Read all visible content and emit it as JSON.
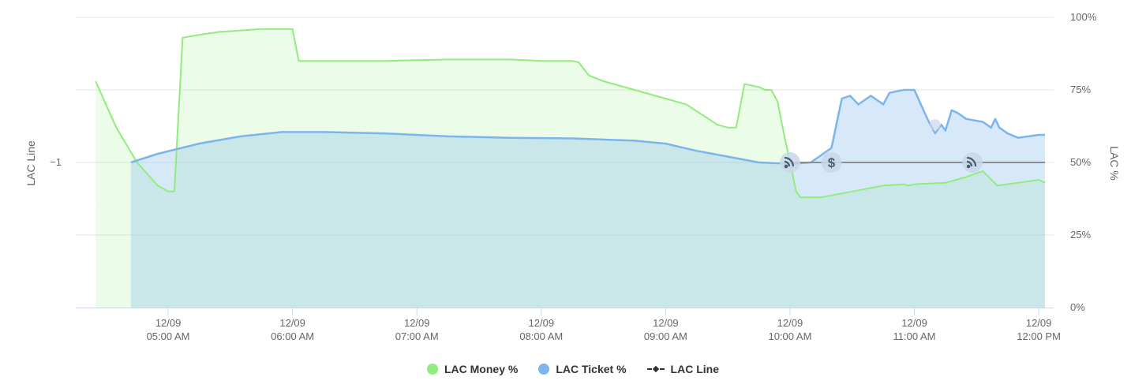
{
  "colors": {
    "money": "#90ed7d",
    "ticket": "#7cb5ec",
    "line": "#434348",
    "grid": "#e6e6e6",
    "marker_bg": "#c9d7e8",
    "marker_fg": "#4a5a70"
  },
  "chart_data": {
    "type": "area",
    "title": "",
    "x_tick_labels": [
      {
        "x": "04:45",
        "date": "12/09",
        "time": "05:00 AM"
      },
      {
        "x": "05:45",
        "date": "12/09",
        "time": "06:00 AM"
      },
      {
        "x": "06:45",
        "date": "12/09",
        "time": "07:00 AM"
      },
      {
        "x": "07:45",
        "date": "12/09",
        "time": "08:00 AM"
      },
      {
        "x": "08:45",
        "date": "12/09",
        "time": "09:00 AM"
      },
      {
        "x": "09:45",
        "date": "12/09",
        "time": "10:00 AM"
      },
      {
        "x": "10:45",
        "date": "12/09",
        "time": "11:00 AM"
      },
      {
        "x": "11:45",
        "date": "12/09",
        "time": "12:00 PM"
      }
    ],
    "x_range": [
      "04:05",
      "11:48"
    ],
    "y_left": {
      "label": "LAC Line",
      "ticks": [
        {
          "value": -1,
          "label": "−1"
        }
      ]
    },
    "y_right": {
      "label": "LAC %",
      "min": 0,
      "max": 100,
      "ticks": [
        0,
        25,
        50,
        75,
        100
      ],
      "tick_labels": [
        "0%",
        "25%",
        "50%",
        "75%",
        "100%"
      ]
    },
    "grid": true,
    "legend_position": "bottom-center",
    "series": [
      {
        "key": "money",
        "name": "LAC Money %",
        "kind": "area",
        "points": [
          [
            "04:10",
            78
          ],
          [
            "04:20",
            62
          ],
          [
            "04:30",
            50
          ],
          [
            "04:40",
            42
          ],
          [
            "04:45",
            40
          ],
          [
            "04:48",
            40
          ],
          [
            "04:52",
            93
          ],
          [
            "05:00",
            94
          ],
          [
            "05:10",
            95
          ],
          [
            "05:20",
            95.5
          ],
          [
            "05:30",
            96
          ],
          [
            "05:35",
            96
          ],
          [
            "05:45",
            96
          ],
          [
            "05:48",
            85
          ],
          [
            "06:00",
            85
          ],
          [
            "06:30",
            85
          ],
          [
            "07:00",
            85.5
          ],
          [
            "07:30",
            85.5
          ],
          [
            "07:45",
            85
          ],
          [
            "08:00",
            85
          ],
          [
            "08:03",
            84.5
          ],
          [
            "08:08",
            80
          ],
          [
            "08:15",
            78
          ],
          [
            "08:45",
            72
          ],
          [
            "08:55",
            70
          ],
          [
            "09:10",
            63
          ],
          [
            "09:15",
            62
          ],
          [
            "09:19",
            62
          ],
          [
            "09:23",
            77
          ],
          [
            "09:30",
            76
          ],
          [
            "09:33",
            75
          ],
          [
            "09:36",
            75
          ],
          [
            "09:39",
            71
          ],
          [
            "09:42",
            60
          ],
          [
            "09:45",
            50
          ],
          [
            "09:48",
            40
          ],
          [
            "09:50",
            38
          ],
          [
            "10:00",
            38
          ],
          [
            "10:15",
            40
          ],
          [
            "10:30",
            42
          ],
          [
            "10:40",
            42.5
          ],
          [
            "10:42",
            42
          ],
          [
            "10:45",
            42.5
          ],
          [
            "11:00",
            43
          ],
          [
            "11:10",
            45
          ],
          [
            "11:18",
            47
          ],
          [
            "11:25",
            42
          ],
          [
            "11:45",
            44
          ],
          [
            "11:48",
            43
          ]
        ]
      },
      {
        "key": "ticket",
        "name": "LAC Ticket %",
        "kind": "area",
        "points": [
          [
            "04:27",
            50
          ],
          [
            "04:40",
            53
          ],
          [
            "05:00",
            56.5
          ],
          [
            "05:20",
            59
          ],
          [
            "05:40",
            60.5
          ],
          [
            "06:00",
            60.5
          ],
          [
            "06:30",
            60
          ],
          [
            "07:00",
            59
          ],
          [
            "07:30",
            58.5
          ],
          [
            "08:00",
            58.3
          ],
          [
            "08:30",
            57.5
          ],
          [
            "08:45",
            56.5
          ],
          [
            "09:00",
            54
          ],
          [
            "09:15",
            52
          ],
          [
            "09:30",
            50
          ],
          [
            "09:45",
            49.5
          ],
          [
            "09:55",
            50
          ],
          [
            "10:05",
            55
          ],
          [
            "10:10",
            72
          ],
          [
            "10:14",
            73
          ],
          [
            "10:18",
            70
          ],
          [
            "10:24",
            73
          ],
          [
            "10:30",
            70
          ],
          [
            "10:33",
            74
          ],
          [
            "10:40",
            75
          ],
          [
            "10:45",
            75
          ],
          [
            "10:50",
            67
          ],
          [
            "10:52",
            64
          ],
          [
            "10:55",
            60
          ],
          [
            "10:58",
            63
          ],
          [
            "11:00",
            61
          ],
          [
            "11:03",
            68
          ],
          [
            "11:06",
            67
          ],
          [
            "11:10",
            65
          ],
          [
            "11:18",
            64
          ],
          [
            "11:22",
            62
          ],
          [
            "11:24",
            65
          ],
          [
            "11:26",
            62
          ],
          [
            "11:30",
            60
          ],
          [
            "11:35",
            58.5
          ],
          [
            "11:40",
            59
          ],
          [
            "11:45",
            59.5
          ],
          [
            "11:48",
            59.5
          ]
        ]
      },
      {
        "key": "line",
        "name": "LAC Line",
        "kind": "line",
        "axis": "left",
        "points": [
          [
            "09:45",
            -1
          ],
          [
            "11:48",
            -1
          ]
        ]
      }
    ],
    "event_markers": [
      {
        "x": "09:45",
        "icon": "rss-icon"
      },
      {
        "x": "10:05",
        "icon": "dollar-icon"
      },
      {
        "x": "10:55",
        "icon": "faint-dot-icon"
      },
      {
        "x": "11:13",
        "icon": "rss-icon"
      }
    ]
  },
  "legend": {
    "money_label": "LAC Money %",
    "ticket_label": "LAC Ticket %",
    "line_label": "LAC Line"
  }
}
